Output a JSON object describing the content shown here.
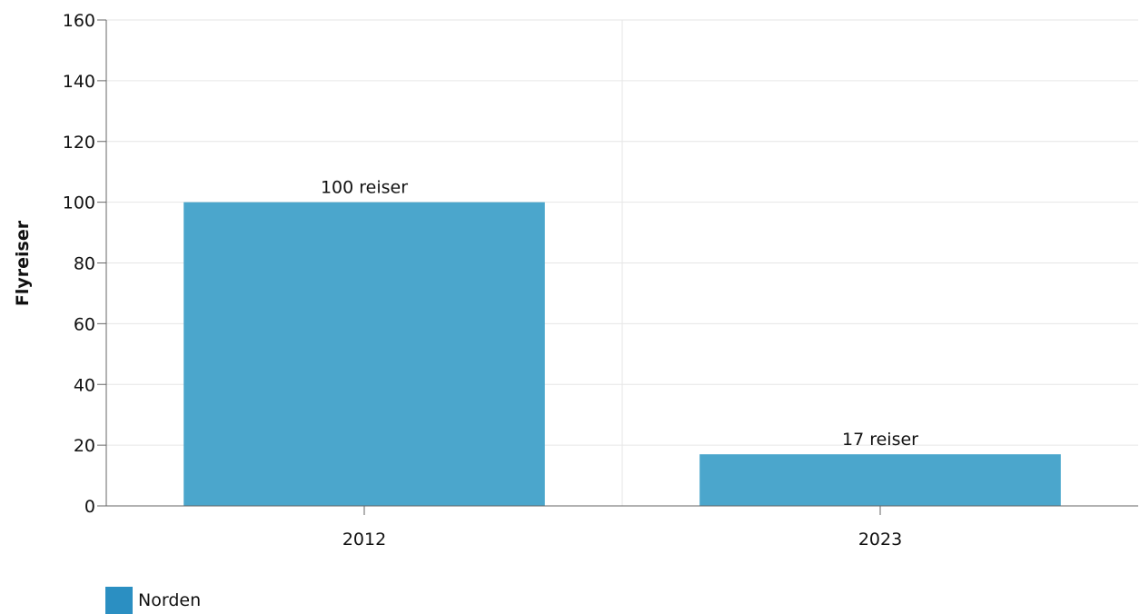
{
  "chart_data": {
    "type": "bar",
    "categories": [
      "2012",
      "2023"
    ],
    "series": [
      {
        "name": "Norden",
        "values": [
          100,
          17
        ]
      }
    ],
    "data_labels": [
      "100 reiser",
      "17 reiser"
    ],
    "title": "",
    "xlabel": "",
    "ylabel": "Flyreiser",
    "ylim": [
      0,
      160
    ],
    "yticks": [
      0,
      20,
      40,
      60,
      80,
      100,
      120,
      140,
      160
    ],
    "grid": true,
    "legend_position": "bottom-left",
    "colors": {
      "bar": "#4ba6cc",
      "legend_swatch": "#2b8fc2",
      "grid": "#e6e6e6",
      "axis": "#666666"
    }
  }
}
